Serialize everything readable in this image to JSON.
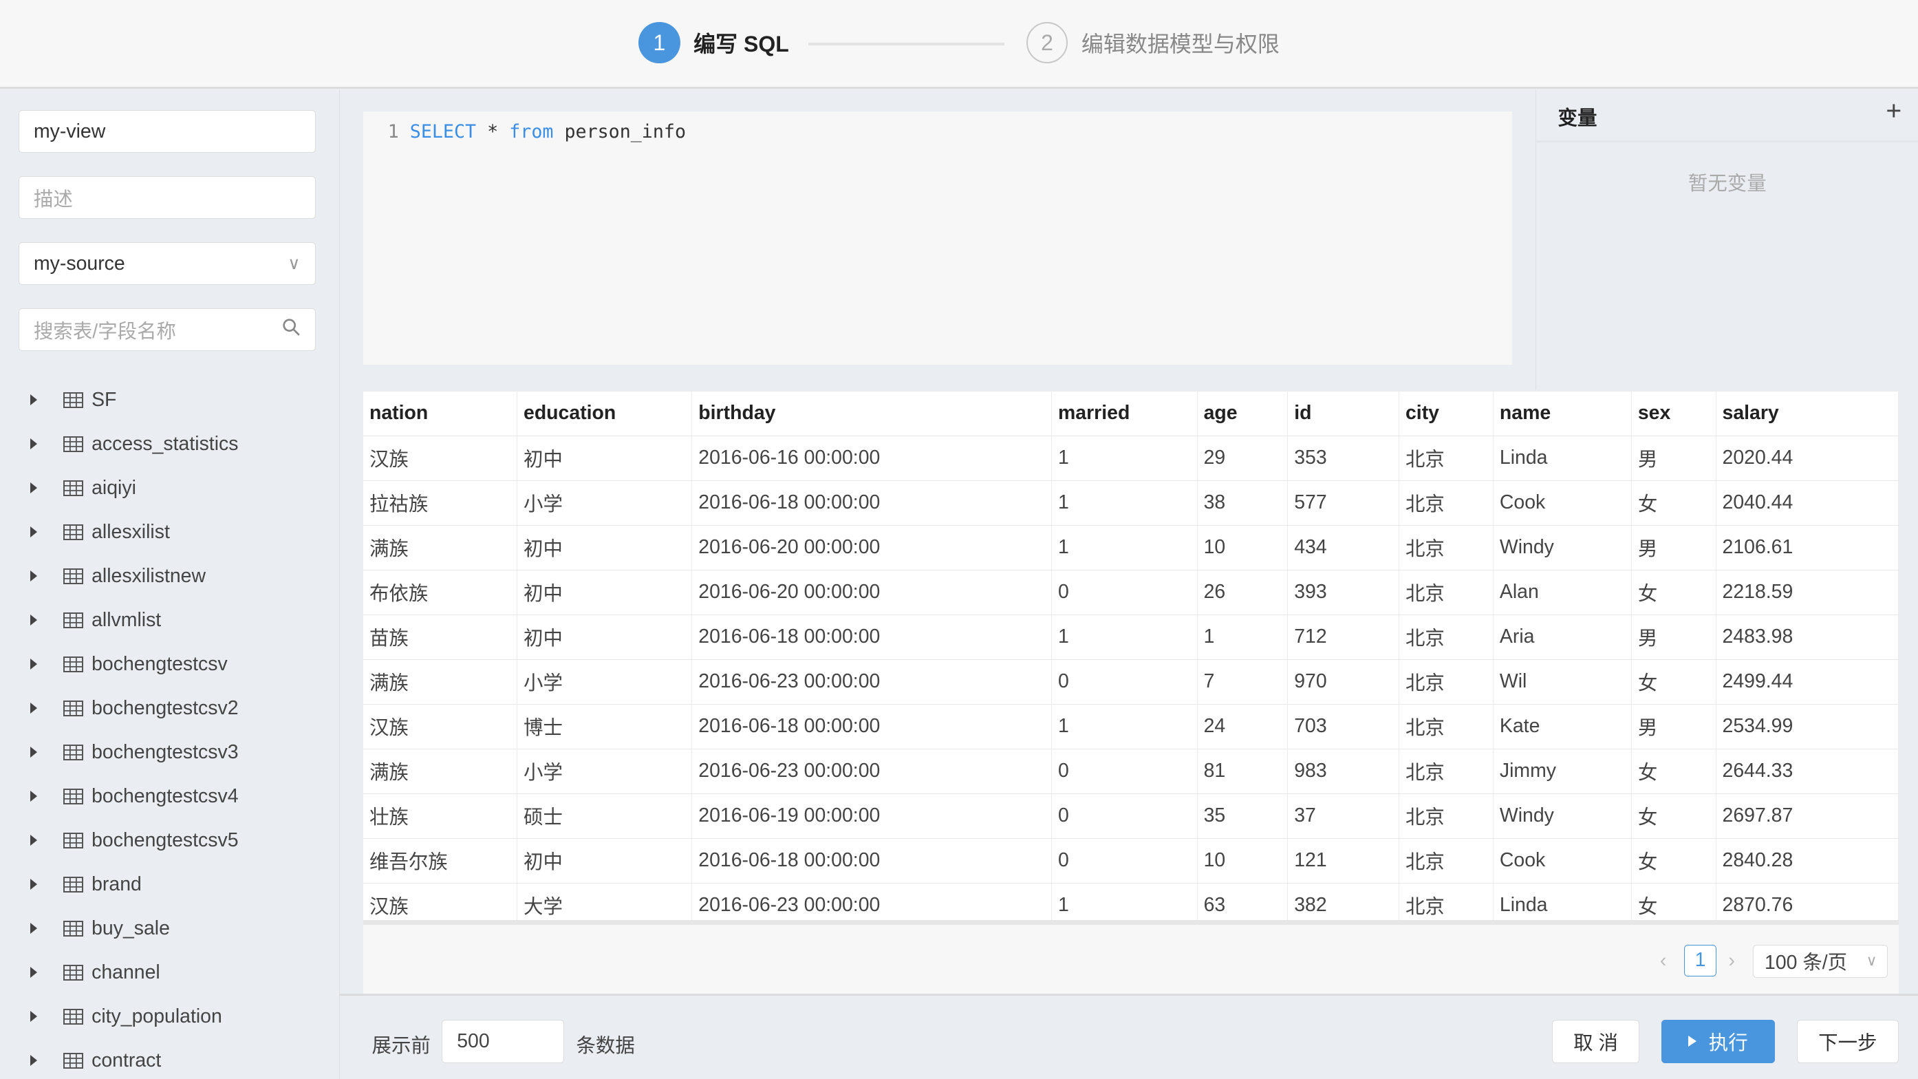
{
  "steps": [
    {
      "num": "1",
      "label": "编写 SQL"
    },
    {
      "num": "2",
      "label": "编辑数据模型与权限"
    }
  ],
  "sidebar": {
    "name_value": "my-view",
    "description_placeholder": "描述",
    "source_value": "my-source",
    "search_placeholder": "搜索表/字段名称",
    "tables": [
      "SF",
      "access_statistics",
      "aiqiyi",
      "allesxilist",
      "allesxilistnew",
      "allvmlist",
      "bochengtestcsv",
      "bochengtestcsv2",
      "bochengtestcsv3",
      "bochengtestcsv4",
      "bochengtestcsv5",
      "brand",
      "buy_sale",
      "channel",
      "city_population",
      "contract"
    ]
  },
  "editor": {
    "line_number": "1",
    "kw1": "SELECT",
    "mid": " * ",
    "kw2": "from",
    "rest": " person_info"
  },
  "variables": {
    "title": "变量",
    "add": "+",
    "empty": "暂无变量"
  },
  "table": {
    "columns": [
      "nation",
      "education",
      "birthday",
      "married",
      "age",
      "id",
      "city",
      "name",
      "sex",
      "salary"
    ],
    "rows": [
      [
        "汉族",
        "初中",
        "2016-06-16 00:00:00",
        "1",
        "29",
        "353",
        "北京",
        "Linda",
        "男",
        "2020.44"
      ],
      [
        "拉祜族",
        "小学",
        "2016-06-18 00:00:00",
        "1",
        "38",
        "577",
        "北京",
        "Cook",
        "女",
        "2040.44"
      ],
      [
        "满族",
        "初中",
        "2016-06-20 00:00:00",
        "1",
        "10",
        "434",
        "北京",
        "Windy",
        "男",
        "2106.61"
      ],
      [
        "布依族",
        "初中",
        "2016-06-20 00:00:00",
        "0",
        "26",
        "393",
        "北京",
        "Alan",
        "女",
        "2218.59"
      ],
      [
        "苗族",
        "初中",
        "2016-06-18 00:00:00",
        "1",
        "1",
        "712",
        "北京",
        "Aria",
        "男",
        "2483.98"
      ],
      [
        "满族",
        "小学",
        "2016-06-23 00:00:00",
        "0",
        "7",
        "970",
        "北京",
        "Wil",
        "女",
        "2499.44"
      ],
      [
        "汉族",
        "博士",
        "2016-06-18 00:00:00",
        "1",
        "24",
        "703",
        "北京",
        "Kate",
        "男",
        "2534.99"
      ],
      [
        "满族",
        "小学",
        "2016-06-23 00:00:00",
        "0",
        "81",
        "983",
        "北京",
        "Jimmy",
        "女",
        "2644.33"
      ],
      [
        "壮族",
        "硕士",
        "2016-06-19 00:00:00",
        "0",
        "35",
        "37",
        "北京",
        "Windy",
        "女",
        "2697.87"
      ],
      [
        "维吾尔族",
        "初中",
        "2016-06-18 00:00:00",
        "0",
        "10",
        "121",
        "北京",
        "Cook",
        "女",
        "2840.28"
      ],
      [
        "汉族",
        "大学",
        "2016-06-23 00:00:00",
        "1",
        "63",
        "382",
        "北京",
        "Linda",
        "女",
        "2870.76"
      ]
    ]
  },
  "pagination": {
    "current": "1",
    "page_size": "100 条/页"
  },
  "footer": {
    "prefix": "展示前",
    "limit": "500",
    "suffix": "条数据",
    "cancel": "取 消",
    "run": "执行",
    "next": "下一步"
  },
  "colors": {
    "accent": "#4a96de"
  }
}
